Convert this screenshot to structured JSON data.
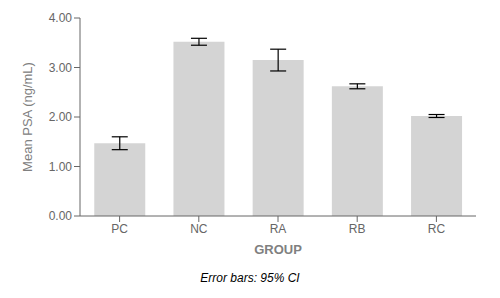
{
  "chart_data": {
    "type": "bar",
    "xlabel": "GROUP",
    "ylabel": "Mean PSA (ng/mL)",
    "footer": "Error bars: 95% CI",
    "categories": [
      "PC",
      "NC",
      "RA",
      "RB",
      "RC"
    ],
    "values": [
      1.47,
      3.52,
      3.15,
      2.62,
      2.02
    ],
    "errors": [
      0.13,
      0.07,
      0.22,
      0.05,
      0.03
    ],
    "color": "#d4d4d4",
    "ylim": [
      0.0,
      4.0
    ],
    "yticks": [
      {
        "value": 0.0,
        "label": "0.00"
      },
      {
        "value": 1.0,
        "label": "1.00"
      },
      {
        "value": 2.0,
        "label": "2.00"
      },
      {
        "value": 3.0,
        "label": "3.00"
      },
      {
        "value": 4.0,
        "label": "4.00"
      }
    ],
    "grid": false
  }
}
